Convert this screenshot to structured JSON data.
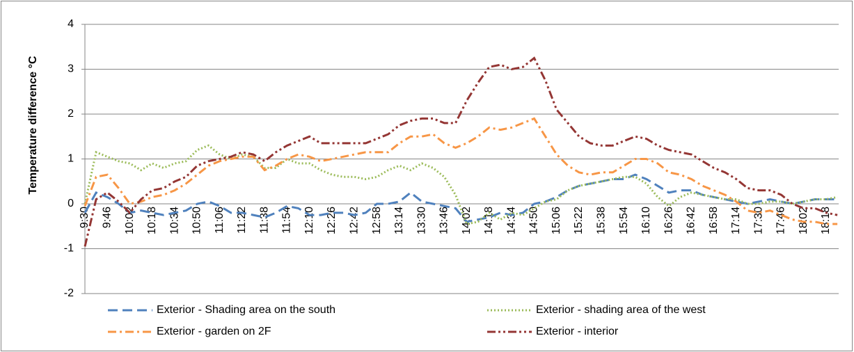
{
  "chart_data": {
    "type": "line",
    "y_label": "Temperature difference °C",
    "categories": [
      "9:30",
      null,
      "9:46",
      null,
      "10:02",
      null,
      "10:18",
      null,
      "10:34",
      null,
      "10:50",
      null,
      "11:06",
      null,
      "11:22",
      null,
      "11:38",
      null,
      "11:54",
      null,
      "12:10",
      null,
      "12:26",
      null,
      "12:42",
      null,
      "12:58",
      null,
      "13:14",
      null,
      "13:30",
      null,
      "13:46",
      null,
      "14:02",
      null,
      "14:18",
      null,
      "14:34",
      null,
      "14:50",
      null,
      "15:06",
      null,
      "15:22",
      null,
      "15:38",
      null,
      "15:54",
      null,
      "16:10",
      null,
      "16:26",
      null,
      "16:42",
      null,
      "16:58",
      null,
      "17:14",
      null,
      "17:30",
      null,
      "17:46",
      null,
      "18:02",
      null,
      "18:18",
      null
    ],
    "ylim": [
      -2,
      4
    ],
    "yticks": [
      -2,
      -1,
      0,
      1,
      2,
      3,
      4
    ],
    "grid": true,
    "legend": "bottom",
    "series": [
      {
        "name": "Exterior - Shading area on the south",
        "color": "#4f81bd",
        "dash": "dash",
        "values": [
          -0.2,
          0.25,
          0.15,
          0,
          -0.2,
          -0.15,
          -0.2,
          -0.25,
          -0.2,
          -0.15,
          0,
          0.05,
          -0.05,
          -0.2,
          -0.2,
          -0.25,
          -0.3,
          -0.2,
          -0.05,
          -0.1,
          -0.25,
          -0.25,
          -0.2,
          -0.2,
          -0.25,
          -0.2,
          0,
          0,
          0.05,
          0.25,
          0.05,
          0,
          -0.05,
          -0.1,
          -0.4,
          -0.35,
          -0.3,
          -0.2,
          -0.25,
          -0.2,
          0,
          0.05,
          0.15,
          0.3,
          0.4,
          0.45,
          0.5,
          0.55,
          0.55,
          0.65,
          0.55,
          0.4,
          0.25,
          0.3,
          0.3,
          0.2,
          0.15,
          0.1,
          0.05,
          0,
          0.05,
          0.1,
          0.05,
          0,
          0.05,
          0.1,
          0.1,
          0.1
        ]
      },
      {
        "name": "Exterior - shading area of the west",
        "color": "#9bbb59",
        "dash": "dot",
        "values": [
          0,
          1.15,
          1.05,
          0.95,
          0.9,
          0.75,
          0.9,
          0.8,
          0.9,
          0.95,
          1.2,
          1.3,
          1.1,
          1.0,
          1.1,
          1.05,
          0.8,
          0.8,
          1.0,
          0.9,
          0.9,
          0.75,
          0.65,
          0.6,
          0.6,
          0.55,
          0.6,
          0.75,
          0.85,
          0.75,
          0.9,
          0.8,
          0.6,
          0.2,
          -0.45,
          -0.4,
          -0.2,
          -0.35,
          -0.2,
          -0.25,
          -0.1,
          0.05,
          0.1,
          0.3,
          0.4,
          0.45,
          0.5,
          0.55,
          0.6,
          0.6,
          0.45,
          0.15,
          -0.05,
          0.15,
          0.25,
          0.2,
          0.15,
          0.1,
          0.1,
          0,
          0,
          0.05,
          0.05,
          0,
          0.05,
          0.1,
          0.1,
          0.15
        ]
      },
      {
        "name": "Exterior - garden on 2F",
        "color": "#f79646",
        "dash": "dashdot",
        "values": [
          -0.05,
          0.6,
          0.65,
          0.35,
          0,
          0.05,
          0.15,
          0.2,
          0.3,
          0.45,
          0.65,
          0.85,
          0.95,
          1.0,
          1.05,
          1.05,
          0.75,
          0.85,
          1.0,
          1.1,
          1.05,
          0.95,
          1.0,
          1.05,
          1.1,
          1.15,
          1.15,
          1.15,
          1.35,
          1.5,
          1.5,
          1.55,
          1.35,
          1.25,
          1.35,
          1.5,
          1.7,
          1.65,
          1.7,
          1.8,
          1.9,
          1.5,
          1.1,
          0.85,
          0.7,
          0.65,
          0.7,
          0.7,
          0.85,
          1.0,
          1.0,
          0.9,
          0.7,
          0.65,
          0.55,
          0.4,
          0.3,
          0.2,
          0.05,
          -0.15,
          -0.2,
          -0.15,
          -0.25,
          -0.35,
          -0.4,
          -0.4,
          -0.45,
          -0.45
        ]
      },
      {
        "name": "Exterior - interior",
        "color": "#943634",
        "dash": "dashdotdot",
        "values": [
          -0.95,
          0.1,
          0.25,
          0.05,
          -0.2,
          0.1,
          0.3,
          0.35,
          0.5,
          0.6,
          0.85,
          0.95,
          1.0,
          1.05,
          1.15,
          1.1,
          0.95,
          1.15,
          1.3,
          1.4,
          1.5,
          1.35,
          1.35,
          1.35,
          1.35,
          1.35,
          1.45,
          1.55,
          1.75,
          1.85,
          1.9,
          1.9,
          1.8,
          1.8,
          2.3,
          2.7,
          3.05,
          3.1,
          3.0,
          3.05,
          3.25,
          2.75,
          2.1,
          1.8,
          1.5,
          1.35,
          1.3,
          1.3,
          1.4,
          1.5,
          1.45,
          1.3,
          1.2,
          1.15,
          1.1,
          0.95,
          0.8,
          0.7,
          0.55,
          0.35,
          0.3,
          0.3,
          0.2,
          0,
          -0.1,
          -0.1,
          -0.2,
          -0.25
        ]
      }
    ]
  }
}
